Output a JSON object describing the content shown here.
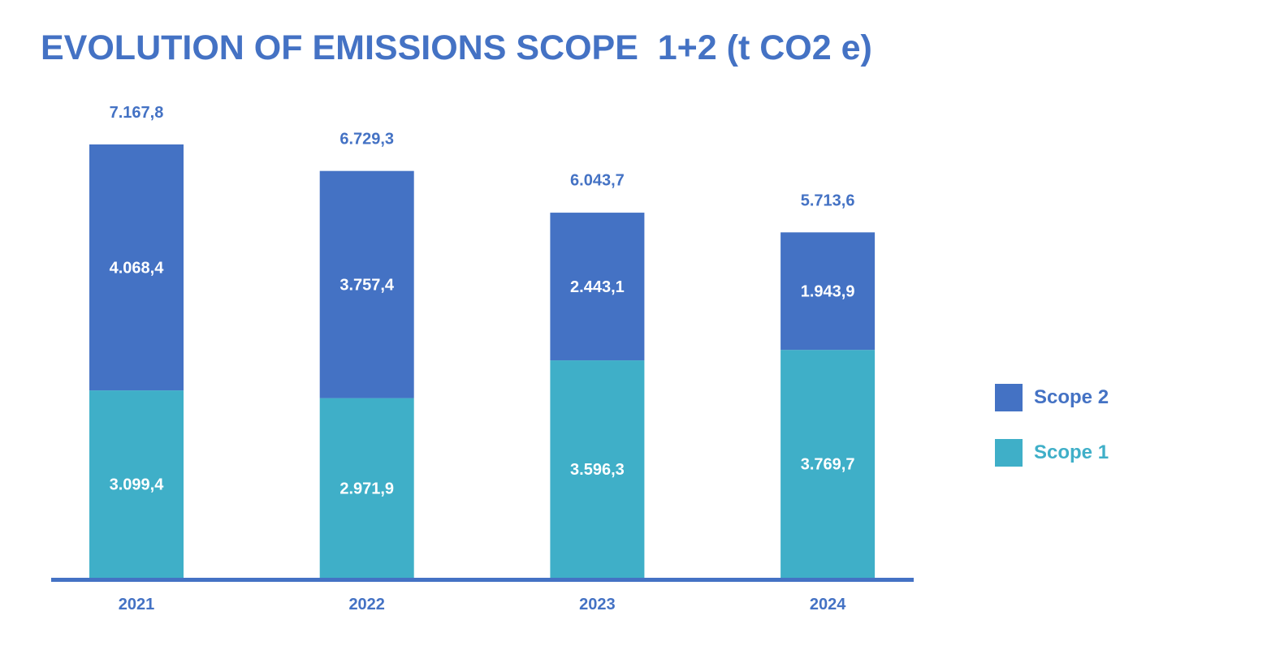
{
  "chart_data": {
    "type": "bar",
    "stacked": true,
    "title": "EVOLUTION OF EMISSIONS SCOPE  1+2 (t CO2 e)",
    "categories": [
      "2021",
      "2022",
      "2023",
      "2024"
    ],
    "series": [
      {
        "name": "Scope 1",
        "values": [
          3099.4,
          2971.9,
          3596.3,
          3769.7
        ],
        "labels": [
          "3.099,4",
          "2.971,9",
          "3.596,3",
          "3.769,7"
        ],
        "color": "#3FAFC8"
      },
      {
        "name": "Scope 2",
        "values": [
          4068.4,
          3757.4,
          2443.1,
          1943.9
        ],
        "labels": [
          "4.068,4",
          "3.757,4",
          "2.443,1",
          "1.943,9"
        ],
        "color": "#4472C4"
      }
    ],
    "totals": [
      7167.8,
      6729.3,
      6043.7,
      5713.6
    ],
    "total_labels": [
      "7.167,8",
      "6.729,3",
      "6.043,7",
      "5.713,6"
    ],
    "ylim": [
      0,
      7200
    ],
    "xlabel": "",
    "ylabel": "",
    "grid": false,
    "legend_position": "right",
    "legend_order": [
      "Scope 2",
      "Scope 1"
    ],
    "title_color": "#4472C4",
    "axis_color": "#4472C4",
    "category_label_color": "#4472C4",
    "total_label_color": "#4472C4",
    "segment_label_color": "#FFFFFF"
  }
}
